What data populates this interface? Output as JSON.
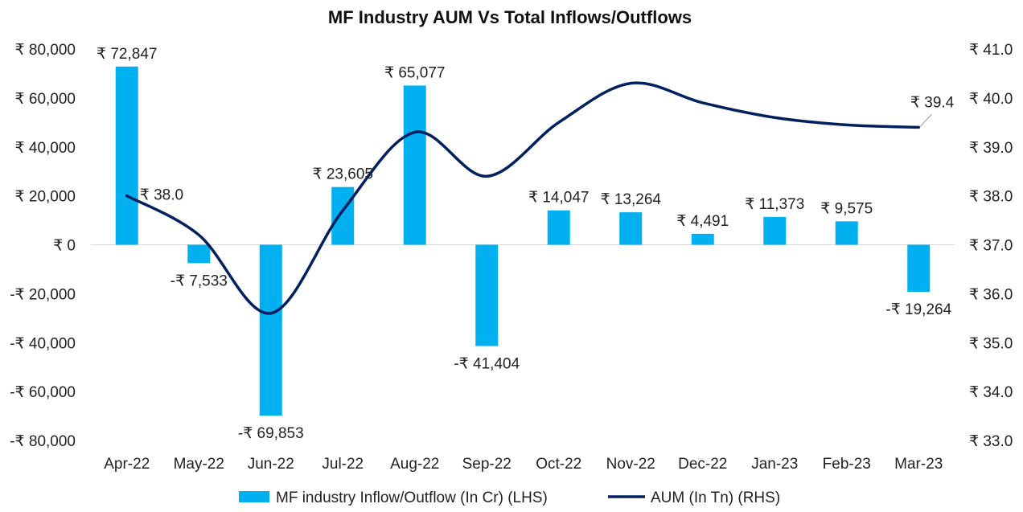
{
  "chart_data": {
    "type": "bar",
    "title": "MF Industry AUM Vs Total Inflows/Outflows",
    "categories": [
      "Apr-22",
      "May-22",
      "Jun-22",
      "Jul-22",
      "Aug-22",
      "Sep-22",
      "Oct-22",
      "Nov-22",
      "Dec-22",
      "Jan-23",
      "Feb-23",
      "Mar-23"
    ],
    "series": [
      {
        "name": "MF industry Inflow/Outflow (In Cr) (LHS)",
        "type": "bar",
        "axis": "left",
        "color": "#00b0f0",
        "values": [
          72847,
          -7533,
          -69853,
          23605,
          65077,
          -41404,
          14047,
          13264,
          4491,
          11373,
          9575,
          -19264
        ],
        "labels": [
          "₹ 72,847",
          "-₹ 7,533",
          "-₹ 69,853",
          "₹ 23,605",
          "₹ 65,077",
          "-₹ 41,404",
          "₹ 14,047",
          "₹ 13,264",
          "₹ 4,491",
          "₹ 11,373",
          "₹ 9,575",
          "-₹ 19,264"
        ]
      },
      {
        "name": "AUM (In Tn) (RHS)",
        "type": "line",
        "axis": "right",
        "color": "#002060",
        "values": [
          38.0,
          37.2,
          35.6,
          37.7,
          39.3,
          38.4,
          39.5,
          40.3,
          39.9,
          39.6,
          39.45,
          39.4
        ],
        "labels": [
          "₹ 38.0",
          "",
          "",
          "",
          "",
          "",
          "",
          "",
          "",
          "",
          "",
          "₹ 39.4"
        ]
      }
    ],
    "y_left": {
      "min": -80000,
      "max": 80000,
      "ticks": [
        80000,
        60000,
        40000,
        20000,
        0,
        -20000,
        -40000,
        -60000,
        -80000
      ],
      "tick_labels": [
        "₹ 80,000",
        "₹ 60,000",
        "₹ 40,000",
        "₹ 20,000",
        "₹ 0",
        "-₹ 20,000",
        "-₹ 40,000",
        "-₹ 60,000",
        "-₹ 80,000"
      ]
    },
    "y_right": {
      "min": 33.0,
      "max": 41.0,
      "ticks": [
        41.0,
        40.0,
        39.0,
        38.0,
        37.0,
        36.0,
        35.0,
        34.0,
        33.0
      ],
      "tick_labels": [
        "₹ 41.0",
        "₹ 40.0",
        "₹ 39.0",
        "₹ 38.0",
        "₹ 37.0",
        "₹ 36.0",
        "₹ 35.0",
        "₹ 34.0",
        "₹ 33.0"
      ]
    },
    "grid": false,
    "legend": "bottom"
  }
}
